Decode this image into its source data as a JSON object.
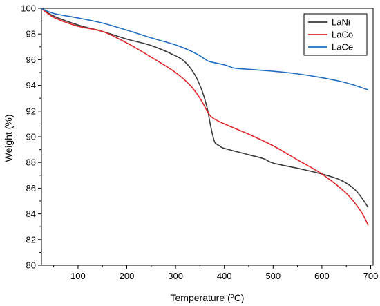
{
  "chart_data": {
    "type": "line",
    "xlabel": "Temperature (",
    "xlabel_sup": "o",
    "xlabel_suffix": "C)",
    "ylabel": "Weight (%)",
    "xlim": [
      25,
      705
    ],
    "ylim": [
      80,
      100
    ],
    "x_ticks": [
      100,
      200,
      300,
      400,
      500,
      600,
      700
    ],
    "y_ticks": [
      80,
      82,
      84,
      86,
      88,
      90,
      92,
      94,
      96,
      98,
      100
    ],
    "grid": false,
    "legend_position": "top-right",
    "series": [
      {
        "name": "LaNi",
        "color": "#3a3a3a",
        "x": [
          25,
          50,
          100,
          150,
          200,
          250,
          300,
          320,
          340,
          355,
          365,
          370,
          375,
          380,
          385,
          390,
          400,
          450,
          480,
          500,
          550,
          600,
          640,
          670,
          695
        ],
        "y": [
          100,
          99.4,
          98.7,
          98.2,
          97.6,
          97.1,
          96.3,
          95.8,
          94.8,
          93.5,
          92.2,
          91.2,
          90.3,
          89.6,
          89.4,
          89.3,
          89.1,
          88.6,
          88.3,
          87.95,
          87.55,
          87.1,
          86.6,
          85.8,
          84.5
        ]
      },
      {
        "name": "LaCo",
        "color": "#e0262b",
        "x": [
          25,
          50,
          100,
          150,
          200,
          250,
          300,
          330,
          350,
          365,
          375,
          400,
          450,
          500,
          550,
          600,
          650,
          680,
          695
        ],
        "y": [
          100,
          99.3,
          98.6,
          98.2,
          97.3,
          96.2,
          95.0,
          94.0,
          93.0,
          92.0,
          91.5,
          91.0,
          90.2,
          89.3,
          88.2,
          87.1,
          85.6,
          84.2,
          83.1
        ]
      },
      {
        "name": "LaCe",
        "color": "#1f6ec4",
        "x": [
          25,
          50,
          100,
          150,
          200,
          250,
          300,
          330,
          350,
          360,
          370,
          400,
          420,
          450,
          500,
          550,
          600,
          650,
          695
        ],
        "y": [
          100,
          99.6,
          99.25,
          98.85,
          98.3,
          97.7,
          97.15,
          96.7,
          96.3,
          96.05,
          95.85,
          95.6,
          95.35,
          95.25,
          95.1,
          94.9,
          94.6,
          94.2,
          93.65
        ]
      }
    ]
  }
}
